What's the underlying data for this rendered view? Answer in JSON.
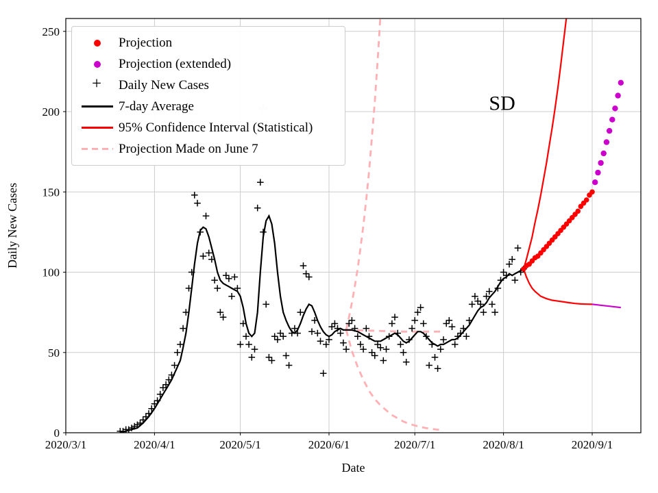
{
  "chart_data": {
    "type": "line+scatter",
    "annotation": {
      "text": "SD",
      "x_day": 152.5,
      "y_value": 201
    },
    "xlabel": "Date",
    "ylabel": "Daily New Cases",
    "x_unit": "days since 2020-03-01",
    "xlim": [
      0,
      201
    ],
    "ylim": [
      0,
      258
    ],
    "grid": true,
    "xticks": {
      "positions": [
        0,
        31,
        61,
        92,
        122,
        153,
        184
      ],
      "labels": [
        "2020/3/1",
        "2020/4/1",
        "2020/5/1",
        "2020/6/1",
        "2020/7/1",
        "2020/8/1",
        "2020/9/1"
      ]
    },
    "yticks": [
      0,
      50,
      100,
      150,
      200,
      250
    ],
    "colors": {
      "projection": "#ff0000",
      "projection_extended": "#cc00cc",
      "daily_cases": "#000000",
      "average": "#000000",
      "confidence_interval": "#ff0000",
      "june7_projection": "#ffb0b5",
      "grid": "#cccccc",
      "outlier": "#c8c8c8"
    },
    "legend": {
      "position": "upper left",
      "entries": [
        {
          "label": "Projection",
          "sample": "dot",
          "color": "#ff0000"
        },
        {
          "label": "Projection (extended)",
          "sample": "dot",
          "color": "#cc00cc"
        },
        {
          "label": "Daily New Cases",
          "sample": "plus",
          "color": "#000000"
        },
        {
          "label": "7-day Average",
          "sample": "line",
          "color": "#000000"
        },
        {
          "label": "95% Confidence Interval (Statistical)",
          "sample": "line",
          "color": "#ff0000"
        },
        {
          "label": "Projection Made on June 7",
          "sample": "dashed",
          "color": "#ffb0b5"
        }
      ]
    },
    "draw_order": [
      "june7_upper",
      "june7_center",
      "june7_lower",
      "ci_upper",
      "ci_lower",
      "ci_lower_extended",
      "outlier_marker",
      "avg7",
      "daily_new_cases",
      "projection",
      "projection_extended"
    ],
    "series": {
      "daily_new_cases": {
        "style": {
          "kind": "scatter",
          "marker": "plus",
          "color": "#000000",
          "size": 4.8,
          "width": 1.5
        },
        "start_day": 19,
        "values": [
          1,
          1,
          2,
          2,
          3,
          4,
          5,
          6,
          8,
          10,
          12,
          15,
          18,
          20,
          24,
          28,
          30,
          33,
          36,
          42,
          50,
          55,
          65,
          75,
          90,
          100,
          148,
          143,
          125,
          110,
          135,
          112,
          108,
          95,
          90,
          75,
          72,
          98,
          96,
          85,
          97,
          90,
          55,
          68,
          60,
          55,
          47,
          52,
          140,
          156,
          125,
          80,
          47,
          45,
          60,
          58,
          62,
          60,
          48,
          42,
          62,
          65,
          62,
          75,
          104,
          99,
          97,
          63,
          70,
          62,
          57,
          37,
          55,
          58,
          66,
          68,
          65,
          62,
          56,
          52,
          68,
          70,
          65,
          60,
          55,
          52,
          65,
          60,
          50,
          48,
          55,
          53,
          45,
          52,
          60,
          68,
          72,
          62,
          55,
          50,
          44,
          58,
          65,
          70,
          75,
          78,
          68,
          60,
          42,
          55,
          47,
          40,
          52,
          58,
          68,
          70,
          66,
          55,
          60,
          62,
          65,
          60,
          70,
          80,
          85,
          82,
          80,
          75,
          85,
          88,
          80,
          75,
          90,
          95,
          100,
          98,
          105,
          108,
          95,
          115,
          100,
          102
        ]
      },
      "avg7": {
        "style": {
          "kind": "line",
          "color": "#000000",
          "width": 2.2
        },
        "start_day": 19,
        "values": [
          0,
          0.5,
          1,
          1.5,
          2,
          2.5,
          3,
          4.5,
          6,
          8,
          10,
          12.5,
          15,
          18,
          21,
          24,
          27,
          30,
          33,
          37,
          41,
          45,
          53,
          62,
          75,
          90,
          105,
          118,
          126,
          128,
          127,
          122,
          115,
          108,
          100,
          95,
          93,
          92,
          91,
          90,
          89,
          88,
          85,
          78,
          68,
          62,
          60,
          62,
          75,
          100,
          122,
          132,
          135,
          130,
          118,
          100,
          85,
          75,
          70,
          66,
          63,
          62,
          64,
          68,
          73,
          77,
          80,
          79,
          75,
          70,
          66,
          63,
          61,
          60,
          61,
          63,
          64,
          65,
          64,
          64,
          64,
          64,
          63.5,
          63,
          62,
          61,
          60,
          59,
          58,
          57,
          57,
          57,
          58,
          59,
          60,
          61,
          62,
          61,
          59,
          57,
          56,
          57,
          59,
          61,
          63,
          63,
          62,
          60,
          58,
          56,
          55,
          54,
          55,
          55,
          56,
          57,
          58,
          58,
          59,
          61,
          63,
          65,
          67,
          70,
          73,
          76,
          78,
          79,
          81,
          84,
          86,
          88,
          91,
          94,
          96,
          97,
          99,
          98,
          99,
          100,
          101,
          102
        ]
      },
      "projection": {
        "style": {
          "kind": "scatter",
          "marker": "dot",
          "color": "#ff0000",
          "size": 3.8
        },
        "start_day": 160,
        "values": [
          102,
          104,
          105,
          107,
          109,
          110,
          112,
          114,
          116,
          118,
          120,
          122,
          124,
          126,
          128,
          130,
          132,
          134,
          136,
          138,
          141,
          143,
          145,
          148,
          150
        ]
      },
      "projection_extended": {
        "style": {
          "kind": "scatter",
          "marker": "dot",
          "color": "#cc00cc",
          "size": 4.2
        },
        "start_day": 185,
        "values": [
          156,
          162,
          168,
          174,
          181,
          188,
          195,
          202,
          210,
          218
        ]
      },
      "ci_upper": {
        "style": {
          "kind": "line",
          "color": "#ff0000",
          "width": 2.2
        },
        "points": [
          [
            160,
            102
          ],
          [
            161,
            108
          ],
          [
            162,
            115
          ],
          [
            163,
            122
          ],
          [
            164,
            131
          ],
          [
            165,
            139
          ],
          [
            166,
            148
          ],
          [
            167,
            158
          ],
          [
            168,
            168
          ],
          [
            169,
            179
          ],
          [
            170,
            190
          ],
          [
            171,
            202
          ],
          [
            172,
            215
          ],
          [
            173,
            229
          ],
          [
            174,
            244
          ],
          [
            175,
            259
          ],
          [
            176,
            276
          ]
        ]
      },
      "ci_lower": {
        "style": {
          "kind": "line",
          "color": "#ff0000",
          "width": 2.2
        },
        "points": [
          [
            160,
            102
          ],
          [
            161,
            97
          ],
          [
            162,
            93
          ],
          [
            163,
            90
          ],
          [
            164,
            88
          ],
          [
            166,
            85
          ],
          [
            168,
            83.5
          ],
          [
            170,
            82.5
          ],
          [
            172,
            82
          ],
          [
            174,
            81.5
          ],
          [
            176,
            81
          ],
          [
            178,
            80.5
          ],
          [
            180,
            80.2
          ],
          [
            182,
            80.1
          ],
          [
            184,
            80
          ]
        ]
      },
      "ci_lower_extended": {
        "style": {
          "kind": "line",
          "color": "#cc00cc",
          "width": 2.2
        },
        "points": [
          [
            184,
            80
          ],
          [
            186,
            79.6
          ],
          [
            188,
            79.2
          ],
          [
            190,
            78.8
          ],
          [
            192,
            78.4
          ],
          [
            194,
            78
          ]
        ]
      },
      "june7_upper": {
        "style": {
          "kind": "line",
          "color": "#ffb0b5",
          "width": 2.8,
          "dash": "9 7"
        },
        "points": [
          [
            98,
            64
          ],
          [
            99,
            72
          ],
          [
            100,
            81
          ],
          [
            101,
            91
          ],
          [
            102,
            102
          ],
          [
            103,
            115
          ],
          [
            104,
            129
          ],
          [
            105,
            145
          ],
          [
            106,
            163
          ],
          [
            107,
            184
          ],
          [
            108,
            206
          ],
          [
            109,
            232
          ],
          [
            110,
            261
          ],
          [
            110.5,
            280
          ]
        ]
      },
      "june7_center": {
        "style": {
          "kind": "line",
          "color": "#ffb0b5",
          "width": 2.8,
          "dash": "9 7"
        },
        "points": [
          [
            98,
            64
          ],
          [
            108,
            63.5
          ],
          [
            118,
            63
          ],
          [
            126,
            63
          ],
          [
            131,
            63
          ]
        ]
      },
      "june7_lower": {
        "style": {
          "kind": "line",
          "color": "#ffb0b5",
          "width": 2.8,
          "dash": "9 7"
        },
        "points": [
          [
            98,
            64
          ],
          [
            100,
            51
          ],
          [
            102,
            41
          ],
          [
            104,
            33
          ],
          [
            106,
            26
          ],
          [
            108,
            21
          ],
          [
            110,
            17
          ],
          [
            112,
            14
          ],
          [
            114,
            11
          ],
          [
            116,
            9
          ],
          [
            118,
            7
          ],
          [
            120,
            5.6
          ],
          [
            122,
            4.5
          ],
          [
            124,
            3.6
          ],
          [
            126,
            2.9
          ],
          [
            128,
            2.3
          ],
          [
            130,
            1.9
          ],
          [
            132,
            1.6
          ]
        ]
      },
      "outlier_marker": {
        "style": {
          "kind": "scatter",
          "marker": "plus",
          "color": "#c8c8c8",
          "size": 6,
          "width": 1.6
        },
        "points": [
          [
            69,
            202
          ]
        ]
      }
    }
  }
}
